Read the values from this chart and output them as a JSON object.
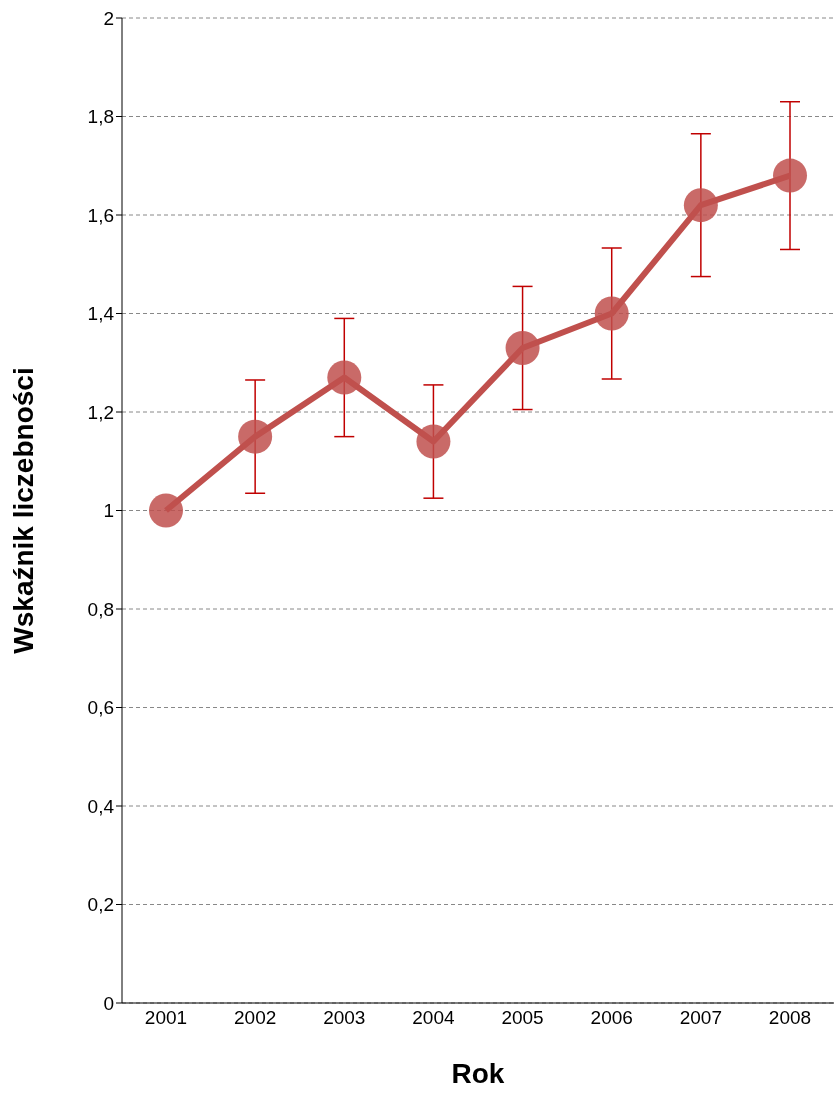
{
  "chart_data": {
    "type": "line",
    "xlabel": "Rok",
    "ylabel": "Wskaźnik liczebności",
    "categories": [
      "2001",
      "2002",
      "2003",
      "2004",
      "2005",
      "2006",
      "2007",
      "2008"
    ],
    "series": [
      {
        "color": "#c0504d",
        "values": [
          1,
          1.15,
          1.27,
          1.14,
          1.33,
          1.4,
          1.62,
          1.68
        ],
        "errors": [
          null,
          0.115,
          0.12,
          0.115,
          0.125,
          0.133,
          0.145,
          0.15
        ]
      }
    ],
    "ylim": [
      0,
      2
    ],
    "yticks": [
      0,
      {
        "value": 0.2,
        "label": "0,2"
      },
      {
        "value": 0.4,
        "label": "0,4"
      },
      {
        "value": 0.6,
        "label": "0,6"
      },
      {
        "value": 0.8,
        "label": "0,8"
      },
      1,
      {
        "value": 1.2,
        "label": "1,2"
      },
      {
        "value": 1.4,
        "label": "1,4"
      },
      {
        "value": 1.6,
        "label": "1,6"
      },
      {
        "value": 1.8,
        "label": "1,8"
      },
      2
    ],
    "grid": "y",
    "marker": "circle",
    "line_style": "solid"
  }
}
